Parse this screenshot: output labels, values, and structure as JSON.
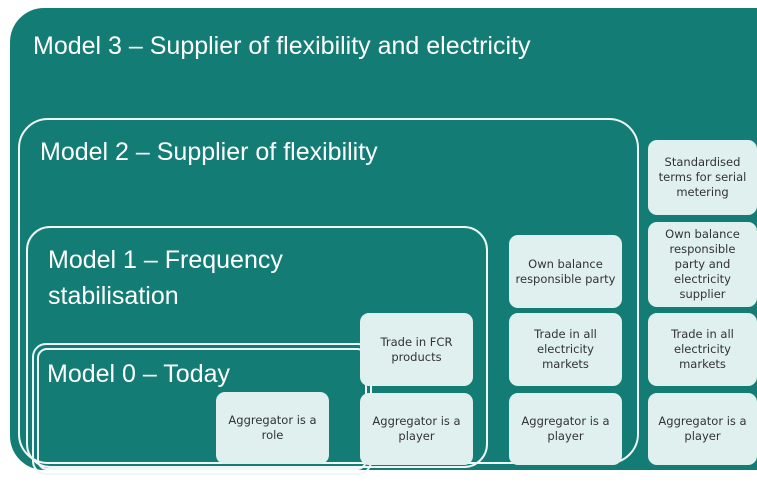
{
  "models": [
    {
      "title": "Model 0 – Today",
      "boxes": [
        "Aggregator is a role"
      ]
    },
    {
      "title": "Model 1 – Frequency stabilisation",
      "boxes": [
        "Trade in FCR products",
        "Aggregator is a player"
      ]
    },
    {
      "title": "Model 2 – Supplier of flexibility",
      "boxes": [
        "Own balance responsible party",
        "Trade in all electricity markets",
        "Aggregator is a player"
      ]
    },
    {
      "title": "Model 3 – Supplier of flexibility and electricity",
      "boxes": [
        "Standardised terms for serial metering",
        "Own balance responsible party and electricity supplier",
        "Trade in all electricity markets",
        "Aggregator is a player"
      ]
    }
  ]
}
